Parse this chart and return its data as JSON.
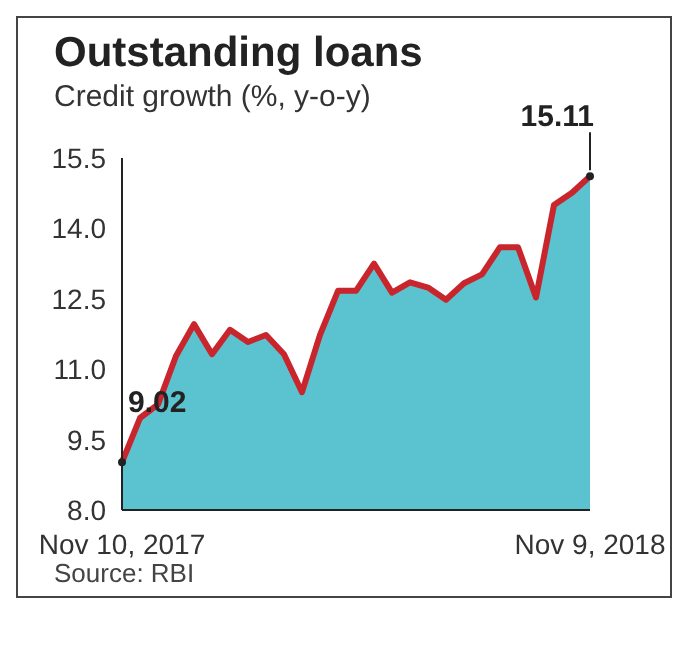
{
  "chart_data": {
    "type": "area",
    "title": "Outstanding loans",
    "subtitle": "Credit growth (%, y-o-y)",
    "categories": [
      "Nov 10, 2017",
      null,
      null,
      null,
      null,
      null,
      null,
      null,
      null,
      null,
      null,
      null,
      null,
      null,
      null,
      null,
      null,
      null,
      null,
      null,
      null,
      null,
      null,
      null,
      null,
      null,
      "Nov 9, 2018"
    ],
    "series": [
      {
        "color": "#5bc3d0",
        "values": [
          9.02,
          9.96,
          10.25,
          11.28,
          11.96,
          11.32,
          11.84,
          11.58,
          11.73,
          11.32,
          10.51,
          11.73,
          12.67,
          12.67,
          13.25,
          12.63,
          12.85,
          12.74,
          12.48,
          12.83,
          13.02,
          13.6,
          13.6,
          12.53,
          14.5,
          14.76,
          15.11
        ]
      },
      {
        "type": "line",
        "color": "#c9252c",
        "values": [
          9.02,
          9.96,
          10.25,
          11.28,
          11.96,
          11.32,
          11.84,
          11.58,
          11.73,
          11.32,
          10.51,
          11.73,
          12.67,
          12.67,
          13.25,
          12.63,
          12.85,
          12.74,
          12.48,
          12.83,
          13.02,
          13.6,
          13.6,
          12.53,
          14.5,
          14.76,
          15.11
        ],
        "value_labels": [
          "9.02",
          null,
          null,
          null,
          null,
          null,
          null,
          null,
          null,
          null,
          null,
          null,
          null,
          null,
          null,
          null,
          null,
          null,
          null,
          null,
          null,
          null,
          null,
          null,
          null,
          null,
          "15.11"
        ]
      }
    ],
    "ylim": [
      8,
      15.5
    ],
    "yticks": [
      {
        "value": 8,
        "label": "8.0"
      },
      {
        "value": 9.5,
        "label": "9.5"
      },
      {
        "value": 11,
        "label": "11.0"
      },
      {
        "value": 12.5,
        "label": "12.5"
      },
      {
        "value": 14,
        "label": "14.0"
      },
      {
        "value": 15.5,
        "label": "15.5"
      }
    ],
    "grid": false,
    "legend": false,
    "marker": "none",
    "line_style": "solid",
    "annotations": [
      "Source: RBI"
    ]
  }
}
